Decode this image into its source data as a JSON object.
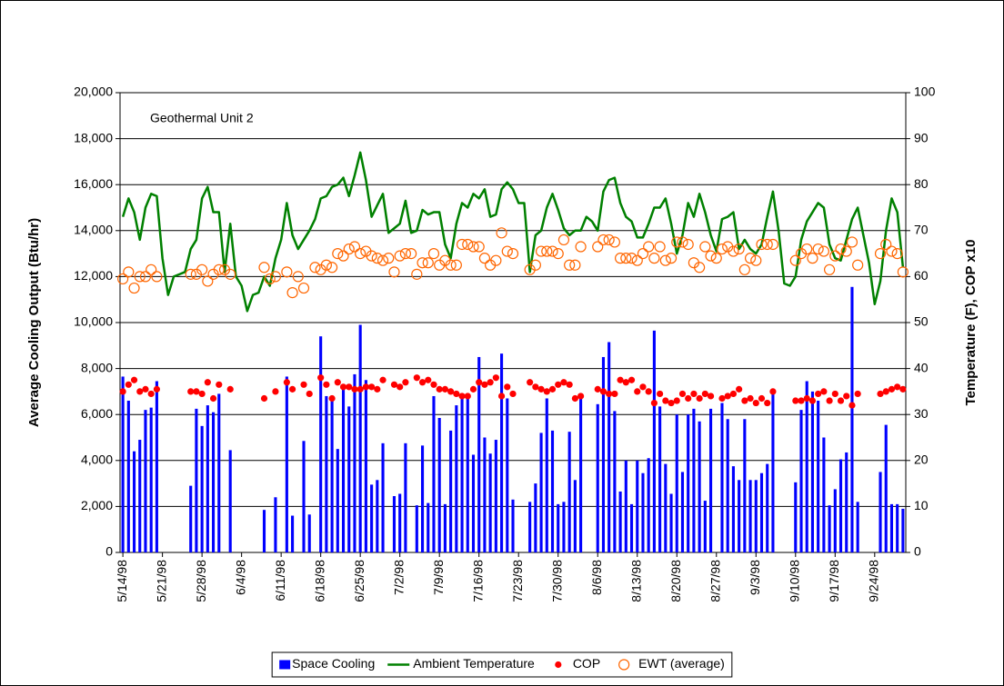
{
  "chart_data": {
    "type": "combo",
    "annotation": "Geothermal Unit 2",
    "y_label": "Average Cooling Output (Btu/hr)",
    "y2_label": "Temperature (F), COP x10",
    "categories": [
      "5/14/98",
      null,
      null,
      null,
      null,
      null,
      null,
      "5/21/98",
      null,
      null,
      null,
      null,
      null,
      null,
      "5/28/98",
      null,
      null,
      null,
      null,
      null,
      null,
      "6/4/98",
      null,
      null,
      null,
      null,
      null,
      null,
      "6/11/98",
      null,
      null,
      null,
      null,
      null,
      null,
      "6/18/98",
      null,
      null,
      null,
      null,
      null,
      null,
      "6/25/98",
      null,
      null,
      null,
      null,
      null,
      null,
      "7/2/98",
      null,
      null,
      null,
      null,
      null,
      null,
      "7/9/98",
      null,
      null,
      null,
      null,
      null,
      null,
      "7/16/98",
      null,
      null,
      null,
      null,
      null,
      null,
      "7/23/98",
      null,
      null,
      null,
      null,
      null,
      null,
      "7/30/98",
      null,
      null,
      null,
      null,
      null,
      null,
      "8/6/98",
      null,
      null,
      null,
      null,
      null,
      null,
      "8/13/98",
      null,
      null,
      null,
      null,
      null,
      null,
      "8/20/98",
      null,
      null,
      null,
      null,
      null,
      null,
      "8/27/98",
      null,
      null,
      null,
      null,
      null,
      null,
      "9/3/98",
      null,
      null,
      null,
      null,
      null,
      null,
      "9/10/98",
      null,
      null,
      null,
      null,
      null,
      null,
      "9/17/98",
      null,
      null,
      null,
      null,
      null,
      null,
      "9/24/98",
      null,
      null,
      null,
      null,
      null
    ],
    "series": [
      {
        "name": "Space Cooling",
        "type": "bar",
        "axis": "y",
        "color": "#0000ff",
        "values": [
          7650,
          6600,
          4400,
          4900,
          6200,
          6300,
          7450,
          null,
          null,
          null,
          null,
          null,
          2900,
          6250,
          5500,
          6400,
          6100,
          6900,
          null,
          4450,
          null,
          null,
          null,
          null,
          null,
          1850,
          null,
          2400,
          null,
          7650,
          1600,
          null,
          4850,
          1650,
          null,
          9400,
          6800,
          6700,
          4500,
          7100,
          6350,
          7750,
          9900,
          7500,
          2950,
          3150,
          4750,
          null,
          2450,
          2550,
          4750,
          null,
          2050,
          4650,
          2150,
          6800,
          5850,
          2100,
          5300,
          6400,
          6750,
          6700,
          4250,
          8500,
          5000,
          4300,
          4900,
          8650,
          6700,
          2300,
          null,
          null,
          2200,
          3000,
          5200,
          6700,
          5300,
          2100,
          2200,
          5250,
          3150,
          6700,
          null,
          null,
          6450,
          8500,
          9150,
          6150,
          2650,
          4000,
          2100,
          4000,
          3450,
          4100,
          9650,
          6350,
          3850,
          2550,
          6000,
          3500,
          6000,
          6250,
          5700,
          2250,
          6250,
          null,
          6500,
          5800,
          3750,
          3150,
          5800,
          3150,
          3150,
          3450,
          3850,
          6900,
          null,
          null,
          null,
          3050,
          6200,
          7450,
          7000,
          6600,
          5000,
          2050,
          2750,
          4050,
          4350,
          11550,
          2200,
          null,
          null,
          null,
          3500,
          5550,
          2100,
          2100,
          1900
        ]
      },
      {
        "name": "Ambient Temperature",
        "type": "line",
        "axis": "y2",
        "color": "#008000",
        "values": [
          73,
          77,
          74,
          68,
          75,
          78,
          77.5,
          64,
          56,
          60,
          60.5,
          61,
          66,
          68,
          77,
          79.5,
          74,
          74,
          61,
          71.5,
          60,
          58,
          52.5,
          56,
          56.5,
          60,
          58,
          64,
          68,
          76,
          69,
          66,
          68,
          70,
          72.5,
          77,
          77.5,
          79.5,
          80,
          81.5,
          77.5,
          82,
          87,
          81,
          73,
          75.5,
          78,
          69.5,
          70.5,
          71.5,
          76.5,
          69.5,
          70,
          74.5,
          73.5,
          74,
          74,
          67,
          64,
          71.5,
          76,
          75,
          78,
          77,
          79,
          73,
          73.5,
          79,
          80.5,
          79,
          76,
          76,
          61,
          69,
          70,
          75,
          78,
          74.5,
          70.5,
          69,
          70,
          70,
          73,
          72,
          70,
          78.5,
          81,
          81.5,
          76,
          73,
          72,
          68.5,
          68.5,
          71.5,
          75,
          75,
          77,
          71.5,
          65,
          69,
          76,
          73,
          78,
          74,
          69,
          65.5,
          72.5,
          73,
          74,
          66,
          68,
          66,
          65,
          67,
          73,
          78.5,
          70,
          58.5,
          58,
          60,
          68,
          72,
          74,
          76,
          75,
          67,
          64,
          63.5,
          68,
          72.5,
          75,
          69,
          63,
          54,
          59,
          70,
          77,
          74,
          62
        ]
      },
      {
        "name": "COP",
        "type": "scatter",
        "marker": "filled",
        "axis": "y2",
        "color": "#ff0000",
        "values": [
          35,
          36.5,
          37.5,
          35,
          35.5,
          34.5,
          35.5,
          null,
          null,
          null,
          null,
          null,
          35,
          35,
          34.5,
          37,
          33.5,
          36.5,
          null,
          35.5,
          null,
          null,
          null,
          null,
          null,
          33.5,
          null,
          35,
          null,
          37,
          35.5,
          null,
          36.5,
          34.5,
          null,
          38,
          36.5,
          33.5,
          37,
          36,
          36,
          35.5,
          35.5,
          36,
          36,
          35.5,
          37.5,
          null,
          36.5,
          36,
          37,
          null,
          38,
          37,
          37.5,
          36.5,
          35.5,
          35.5,
          35,
          34.5,
          34,
          34,
          35.5,
          37,
          36.5,
          37,
          38,
          34,
          36,
          34.5,
          null,
          null,
          37,
          36,
          35.5,
          35,
          35.5,
          36.5,
          37,
          36.5,
          33.5,
          34,
          null,
          null,
          35.5,
          35,
          34.5,
          34.5,
          37.5,
          37,
          37.5,
          35,
          36,
          35,
          32.5,
          34.5,
          33,
          32.5,
          33,
          34.5,
          33.5,
          34.5,
          33.5,
          34.5,
          34,
          null,
          33.5,
          34,
          34.5,
          35.5,
          33,
          33.5,
          32.5,
          33.5,
          32.5,
          35,
          null,
          null,
          null,
          33,
          33,
          33.5,
          33,
          34.5,
          35,
          33,
          34.5,
          33,
          34,
          32,
          34.5,
          null,
          null,
          null,
          34.5,
          35,
          35.5,
          36,
          35.5
        ]
      },
      {
        "name": "EWT (average)",
        "type": "scatter",
        "marker": "hollow",
        "axis": "y2",
        "color": "#ff6600",
        "values": [
          59.5,
          61,
          57.5,
          60,
          60,
          61.5,
          60,
          null,
          null,
          null,
          null,
          null,
          60.5,
          60.5,
          61.5,
          59,
          60.5,
          61.5,
          61.5,
          60.5,
          null,
          null,
          null,
          null,
          null,
          62,
          59.5,
          60,
          null,
          61,
          56.5,
          60,
          57.5,
          null,
          62,
          61.5,
          62.5,
          62,
          65,
          64.5,
          66,
          66.5,
          65,
          65.5,
          64.5,
          64,
          63.5,
          64,
          61,
          64.5,
          65,
          65,
          60.5,
          63,
          63,
          65,
          62.5,
          63.5,
          62.5,
          62.5,
          67,
          67,
          66.5,
          66.5,
          64,
          62.5,
          63.5,
          69.5,
          65.5,
          65,
          null,
          null,
          61.5,
          62.5,
          65.5,
          65.5,
          65.5,
          65,
          68,
          62.5,
          62.5,
          66.5,
          null,
          null,
          66.5,
          68,
          68,
          67.5,
          64,
          64,
          64,
          63.5,
          65,
          66.5,
          64,
          66.5,
          63.5,
          64,
          67.5,
          67.5,
          67,
          63,
          62,
          66.5,
          64.5,
          64,
          66,
          66.5,
          65.5,
          66,
          61.5,
          64,
          63.5,
          67,
          67,
          67,
          null,
          null,
          null,
          63.5,
          65,
          66,
          64,
          66,
          65.5,
          61.5,
          64.5,
          66,
          65.5,
          67.5,
          62.5,
          null,
          null,
          null,
          65,
          67,
          65.5,
          65,
          61
        ]
      }
    ],
    "ylim": [
      0,
      20000
    ],
    "yticks": [
      0,
      {
        "value": 2000,
        "label": "2,000"
      },
      {
        "value": 4000,
        "label": "4,000"
      },
      {
        "value": 6000,
        "label": "6,000"
      },
      {
        "value": 8000,
        "label": "8,000"
      },
      {
        "value": 10000,
        "label": "10,000"
      },
      {
        "value": 12000,
        "label": "12,000"
      },
      {
        "value": 14000,
        "label": "14,000"
      },
      {
        "value": 16000,
        "label": "16,000"
      },
      {
        "value": 18000,
        "label": "18,000"
      },
      {
        "value": 20000,
        "label": "20,000"
      }
    ],
    "y2lim": [
      0,
      100
    ],
    "y2ticks": [
      0,
      10,
      20,
      30,
      40,
      50,
      60,
      70,
      80,
      90,
      100
    ],
    "grid": true,
    "legend": "bottom"
  }
}
